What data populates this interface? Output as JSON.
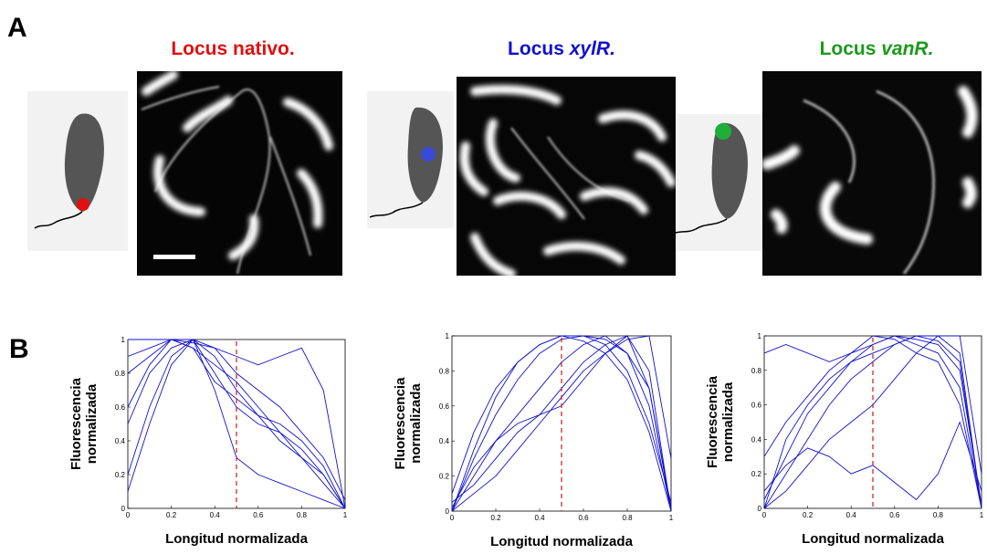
{
  "panel_a": {
    "label": "A",
    "images": [
      {
        "title_prefix": "Locus",
        "title_italic": "nativo."
      },
      {
        "title_prefix": "Locus",
        "title_italic": "xylR."
      },
      {
        "title_prefix": "Locus",
        "title_italic": "vanR."
      }
    ]
  },
  "panel_b": {
    "label": "B"
  },
  "chart_data": [
    {
      "type": "line",
      "xlabel": "Longitud normalizada",
      "ylabel": [
        "Fluorescencia",
        "normalizada"
      ],
      "xlim": [
        0,
        1
      ],
      "ylim": [
        0,
        1
      ],
      "xticks": [
        0,
        0.2,
        0.4,
        0.6,
        0.8,
        1
      ],
      "yticks": [
        0,
        0.2,
        0.4,
        0.6,
        0.8,
        1
      ],
      "color": "#1010d0",
      "vline": 0.5,
      "vline_color": "#d62728",
      "x": [
        0,
        0.1,
        0.2,
        0.3,
        0.4,
        0.5,
        0.6,
        0.7,
        0.8,
        0.9,
        1
      ],
      "series": [
        {
          "values": [
            0.9,
            0.95,
            1,
            0.95,
            0.85,
            0.75,
            0.6,
            0.45,
            0.3,
            0.15,
            0
          ]
        },
        {
          "values": [
            0.5,
            0.8,
            0.95,
            1,
            0.9,
            0.7,
            0.55,
            0.4,
            0.3,
            0.2,
            0
          ]
        },
        {
          "values": [
            0.1,
            0.5,
            0.85,
            1,
            0.8,
            0.6,
            0.5,
            0.45,
            0.35,
            0.2,
            0
          ]
        },
        {
          "values": [
            1,
            1,
            1,
            0.98,
            0.95,
            0.9,
            0.85,
            0.9,
            0.95,
            0.7,
            0
          ]
        },
        {
          "values": [
            0.2,
            0.6,
            0.9,
            1,
            0.7,
            0.3,
            0.2,
            0.15,
            0.1,
            0.05,
            0
          ]
        },
        {
          "values": [
            0.8,
            0.9,
            1,
            1,
            0.95,
            0.8,
            0.7,
            0.6,
            0.45,
            0.3,
            0.05
          ]
        },
        {
          "values": [
            0.6,
            0.85,
            1,
            0.95,
            0.75,
            0.65,
            0.55,
            0.5,
            0.4,
            0.25,
            0
          ]
        }
      ]
    },
    {
      "type": "line",
      "xlabel": "Longitud normalizada",
      "ylabel": [
        "Fluorescencia",
        "normalizada"
      ],
      "xlim": [
        0,
        1
      ],
      "ylim": [
        0,
        1
      ],
      "xticks": [
        0,
        0.2,
        0.4,
        0.6,
        0.8,
        1
      ],
      "yticks": [
        0,
        0.2,
        0.4,
        0.6,
        0.8,
        1
      ],
      "color": "#1010d0",
      "vline": 0.5,
      "vline_color": "#d62728",
      "x": [
        0,
        0.1,
        0.2,
        0.3,
        0.4,
        0.5,
        0.6,
        0.7,
        0.8,
        0.9,
        1
      ],
      "series": [
        {
          "values": [
            0,
            0.2,
            0.4,
            0.55,
            0.7,
            0.85,
            0.95,
            1,
            0.9,
            0.6,
            0
          ]
        },
        {
          "values": [
            0,
            0.3,
            0.55,
            0.75,
            0.9,
            0.98,
            1,
            0.95,
            0.8,
            0.5,
            0.05
          ]
        },
        {
          "values": [
            0.05,
            0.15,
            0.3,
            0.45,
            0.55,
            0.7,
            0.85,
            0.95,
            1,
            0.8,
            0
          ]
        },
        {
          "values": [
            0.1,
            0.45,
            0.7,
            0.85,
            0.95,
            1,
            0.97,
            0.9,
            0.75,
            0.45,
            0
          ]
        },
        {
          "values": [
            0,
            0.1,
            0.2,
            0.35,
            0.5,
            0.65,
            0.8,
            0.9,
            0.98,
            1,
            0.3
          ]
        },
        {
          "values": [
            0.02,
            0.25,
            0.4,
            0.5,
            0.55,
            0.6,
            0.75,
            0.9,
            1,
            0.7,
            0
          ]
        },
        {
          "values": [
            0,
            0.35,
            0.65,
            0.85,
            0.95,
            1,
            1,
            0.98,
            0.9,
            0.7,
            0.02
          ]
        }
      ]
    },
    {
      "type": "line",
      "xlabel": "Longitud normalizada",
      "ylabel": [
        "Fluorescencia",
        "normalizada"
      ],
      "xlim": [
        0,
        1
      ],
      "ylim": [
        0,
        1
      ],
      "xticks": [
        0,
        0.2,
        0.4,
        0.6,
        0.8,
        1
      ],
      "yticks": [
        0,
        0.2,
        0.4,
        0.6,
        0.8,
        1
      ],
      "color": "#1010d0",
      "vline": 0.5,
      "vline_color": "#d62728",
      "x": [
        0,
        0.1,
        0.2,
        0.3,
        0.4,
        0.5,
        0.6,
        0.7,
        0.8,
        0.9,
        1
      ],
      "series": [
        {
          "values": [
            0,
            0.2,
            0.4,
            0.6,
            0.75,
            0.85,
            0.95,
            1,
            1,
            0.9,
            0
          ]
        },
        {
          "values": [
            0.05,
            0.3,
            0.55,
            0.7,
            0.85,
            0.95,
            1,
            0.98,
            0.95,
            0.8,
            0.02
          ]
        },
        {
          "values": [
            0.3,
            0.5,
            0.65,
            0.8,
            0.9,
            1,
            0.98,
            0.9,
            0.85,
            0.6,
            0
          ]
        },
        {
          "values": [
            0,
            0.1,
            0.25,
            0.4,
            0.5,
            0.6,
            0.75,
            0.9,
            1,
            1,
            0.2
          ]
        },
        {
          "values": [
            0.9,
            0.95,
            0.9,
            0.85,
            0.9,
            0.95,
            1,
            0.95,
            0.9,
            0.7,
            0
          ]
        },
        {
          "values": [
            0.1,
            0.25,
            0.35,
            0.3,
            0.2,
            0.25,
            0.15,
            0.05,
            0.2,
            0.5,
            0.1
          ]
        },
        {
          "values": [
            0,
            0.4,
            0.6,
            0.75,
            0.85,
            0.9,
            0.95,
            1,
            0.97,
            0.85,
            0
          ]
        }
      ]
    }
  ]
}
